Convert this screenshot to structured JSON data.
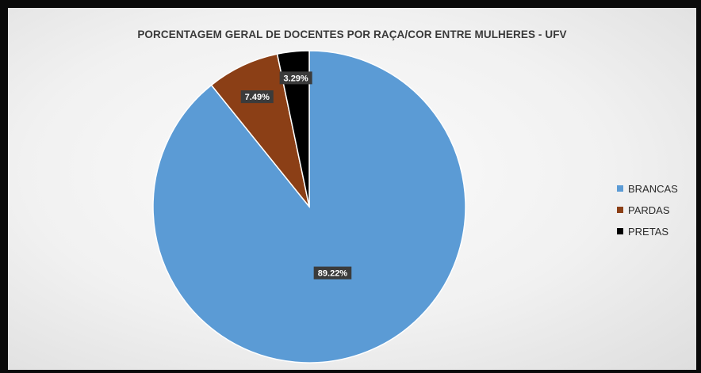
{
  "chart_data": {
    "type": "pie",
    "title": "PORCENTAGEM GERAL DE DOCENTES POR RAÇA/COR ENTRE MULHERES - UFV",
    "categories": [
      "BRANCAS",
      "PARDAS",
      "PRETAS"
    ],
    "values": [
      89.22,
      7.49,
      3.29
    ],
    "data_labels": [
      "89.22%",
      "7.49%",
      "3.29%"
    ],
    "colors": [
      "#5b9bd5",
      "#8b3f16",
      "#000000"
    ],
    "legend_position": "right"
  }
}
